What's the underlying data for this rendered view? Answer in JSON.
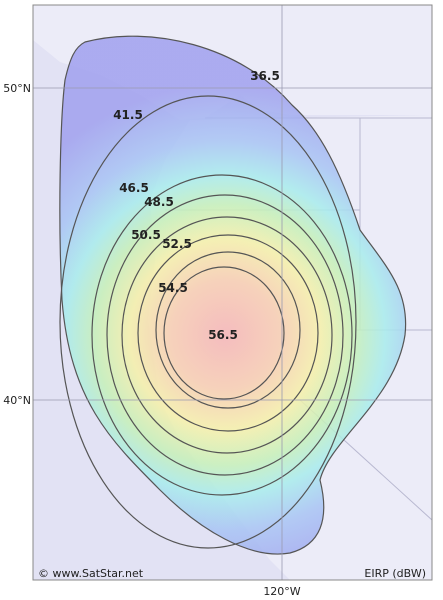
{
  "map": {
    "latitude_labels": [
      "50°N",
      "40°N"
    ],
    "longitude_labels": [
      "120°W"
    ],
    "credit": "© www.SatStar.net",
    "unit_label": "EIRP (dBW)",
    "contours": [
      {
        "label": 36.5
      },
      {
        "label": 41.5
      },
      {
        "label": 46.5
      },
      {
        "label": 48.5
      },
      {
        "label": 50.5
      },
      {
        "label": 52.5
      },
      {
        "label": 54.5
      },
      {
        "label": 56.5
      }
    ]
  }
}
